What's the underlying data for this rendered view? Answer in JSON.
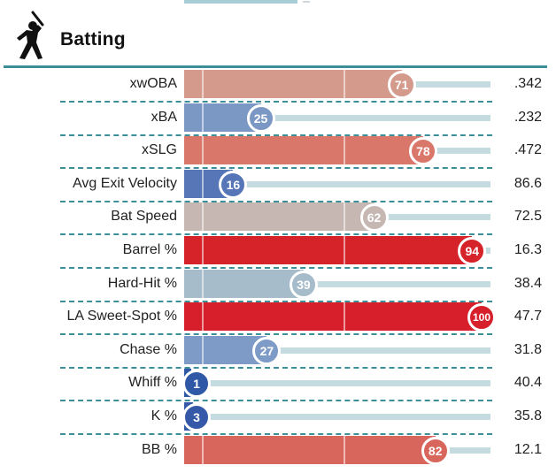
{
  "section": {
    "title": "Batting",
    "icon": "batter-silhouette-icon"
  },
  "scale_max": 100,
  "metrics": [
    {
      "label": "xwOBA",
      "percentile": 71,
      "value": ".342",
      "color": "#d49a8b"
    },
    {
      "label": "xBA",
      "percentile": 25,
      "value": ".232",
      "color": "#7b98c5"
    },
    {
      "label": "xSLG",
      "percentile": 78,
      "value": ".472",
      "color": "#d9776a"
    },
    {
      "label": "Avg Exit Velocity",
      "percentile": 16,
      "value": "86.6",
      "color": "#5776b8"
    },
    {
      "label": "Bat Speed",
      "percentile": 62,
      "value": "72.5",
      "color": "#c6b7b3"
    },
    {
      "label": "Barrel %",
      "percentile": 94,
      "value": "16.3",
      "color": "#d6232a"
    },
    {
      "label": "Hard-Hit %",
      "percentile": 39,
      "value": "38.4",
      "color": "#a6bccb"
    },
    {
      "label": "LA Sweet-Spot %",
      "percentile": 100,
      "value": "47.7",
      "color": "#d61f2b"
    },
    {
      "label": "Chase %",
      "percentile": 27,
      "value": "31.8",
      "color": "#7e9bc7"
    },
    {
      "label": "Whiff %",
      "percentile": 1,
      "value": "40.4",
      "color": "#2f58a6"
    },
    {
      "label": "K %",
      "percentile": 3,
      "value": "35.8",
      "color": "#3559a8"
    },
    {
      "label": "BB %",
      "percentile": 82,
      "value": "12.1",
      "color": "#d8665c"
    }
  ]
}
